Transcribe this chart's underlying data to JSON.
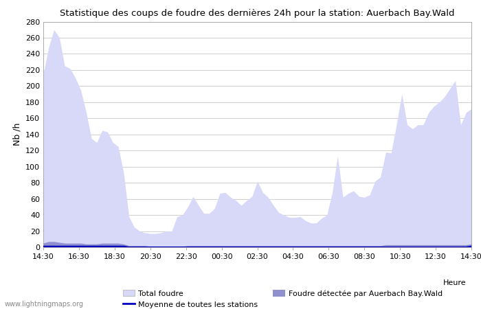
{
  "title": "Statistique des coups de foudre des dernières 24h pour la station: Auerbach Bay.Wald",
  "ylabel": "Nb /h",
  "ylim": [
    0,
    280
  ],
  "yticks": [
    0,
    20,
    40,
    60,
    80,
    100,
    120,
    140,
    160,
    180,
    200,
    220,
    240,
    260,
    280
  ],
  "x_labels": [
    "14:30",
    "16:30",
    "18:30",
    "20:30",
    "22:30",
    "00:30",
    "02:30",
    "04:30",
    "06:30",
    "08:30",
    "10:30",
    "12:30",
    "14:30"
  ],
  "watermark": "www.lightningmaps.org",
  "bg_color": "#ffffff",
  "grid_color": "#c8c8c8",
  "total_foudre_color": "#d8d8f8",
  "detected_color": "#9090d0",
  "moyenne_color": "#0000bb",
  "legend_total": "Total foudre",
  "legend_detected": "Foudre détectée par Auerbach Bay.Wald",
  "legend_moyenne": "Moyenne de toutes les stations",
  "xlabel_right": "Heure",
  "total_foudre_values": [
    215,
    248,
    270,
    260,
    225,
    222,
    210,
    195,
    168,
    135,
    130,
    145,
    143,
    130,
    125,
    93,
    38,
    25,
    20,
    18,
    17,
    17,
    18,
    20,
    20,
    38,
    40,
    50,
    63,
    52,
    42,
    42,
    48,
    67,
    68,
    62,
    58,
    52,
    58,
    63,
    82,
    68,
    62,
    52,
    43,
    40,
    37,
    37,
    38,
    33,
    30,
    30,
    36,
    40,
    68,
    113,
    62,
    67,
    70,
    63,
    62,
    65,
    82,
    87,
    118,
    117,
    152,
    190,
    152,
    147,
    152,
    152,
    167,
    175,
    180,
    187,
    197,
    207,
    152,
    167,
    172
  ],
  "detected_values": [
    5,
    7,
    7,
    6,
    5,
    5,
    5,
    5,
    4,
    4,
    4,
    5,
    5,
    5,
    5,
    4,
    2,
    2,
    2,
    2,
    1,
    1,
    1,
    1,
    1,
    1,
    1,
    2,
    2,
    2,
    2,
    2,
    2,
    2,
    2,
    2,
    2,
    2,
    2,
    2,
    2,
    2,
    2,
    2,
    2,
    2,
    2,
    2,
    2,
    2,
    2,
    2,
    2,
    2,
    2,
    2,
    2,
    2,
    2,
    2,
    2,
    2,
    2,
    2,
    3,
    3,
    3,
    3,
    3,
    3,
    3,
    3,
    3,
    3,
    3,
    3,
    3,
    3,
    3,
    3,
    4
  ],
  "moyenne_values": [
    1,
    1,
    1,
    1,
    1,
    1,
    1,
    1,
    1,
    1,
    1,
    1,
    1,
    1,
    1,
    1,
    0,
    0,
    0,
    0,
    0,
    0,
    0,
    0,
    0,
    0,
    0,
    0,
    0,
    0,
    0,
    0,
    0,
    0,
    0,
    0,
    0,
    0,
    0,
    0,
    0,
    0,
    0,
    0,
    0,
    0,
    0,
    0,
    0,
    0,
    0,
    0,
    0,
    0,
    0,
    0,
    0,
    0,
    0,
    0,
    0,
    0,
    0,
    0,
    0,
    0,
    0,
    0,
    0,
    0,
    0,
    0,
    0,
    0,
    0,
    0,
    0,
    0,
    0,
    0,
    1
  ]
}
